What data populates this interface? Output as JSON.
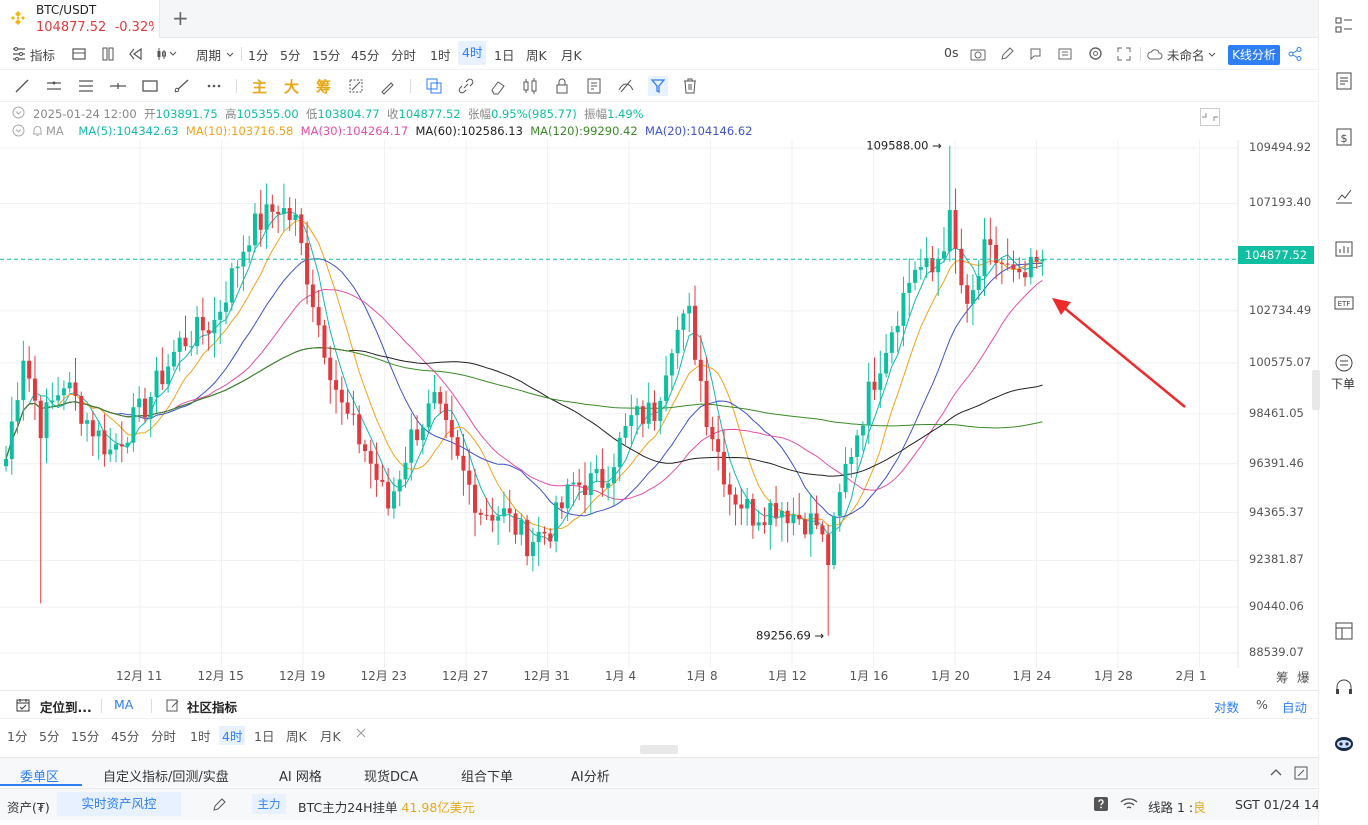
{
  "tab": {
    "symbol": "BTC/USDT",
    "price": "104877.52",
    "change": "-0.32%",
    "add": "+"
  },
  "toolbar": {
    "indicator_label": "指标",
    "period_label": "周期",
    "periods": [
      "1分",
      "5分",
      "15分",
      "45分",
      "分时",
      "1时",
      "4时",
      "1日",
      "周K",
      "月K"
    ],
    "active_period": "4时",
    "time_label": "0s",
    "layout_name": "未命名",
    "kline_ai": "K线分析"
  },
  "drawbar": {
    "main": "主",
    "big": "大",
    "chip": "筹"
  },
  "info": {
    "date": "2025-01-24 12:00",
    "open_label": "开",
    "open": "103891.75",
    "high_label": "高",
    "high": "105355.00",
    "low_label": "低",
    "low": "103804.77",
    "close_label": "收",
    "close": "104877.52",
    "chg_label": "张幅",
    "chg": "0.95%(985.77)",
    "amp_label": "振幅",
    "amp": "1.49%",
    "ma_label": "MA",
    "ma5": "MA(5):104342.63",
    "ma10": "MA(10):103716.58",
    "ma30": "MA(30):104264.17",
    "ma60": "MA(60):102586.13",
    "ma120": "MA(120):99290.42",
    "ma20": "MA(20):104146.62"
  },
  "colors": {
    "up": "#0ec0a1",
    "down": "#e03a3e",
    "ma5": "#14b8b0",
    "ma10": "#f0a31b",
    "ma30": "#e34fa7",
    "ma60": "#222222",
    "ma120": "#3a8a27",
    "ma20": "#3f52c8",
    "accent": "#2d7ef7"
  },
  "chart_data": {
    "type": "candlestick",
    "symbol": "BTC/USDT",
    "interval": "4时",
    "ylim": [
      88539.07,
      110500
    ],
    "y_ticks": [
      "109494.92",
      "107193.40",
      "102734.49",
      "100575.07",
      "98461.05",
      "96391.46",
      "94365.37",
      "92381.87",
      "90440.06",
      "88539.07"
    ],
    "x_ticks": [
      "12月 11",
      "12月 15",
      "12月 19",
      "12月 23",
      "12月 27",
      "12月 31",
      "1月 4",
      "1月 8",
      "1月 12",
      "1月 16",
      "1月 20",
      "1月 24",
      "1月 28",
      "2月 1"
    ],
    "current_price": "104877.52",
    "max_label": "109588.00",
    "min_label": "89256.69",
    "max_price": 109588.0,
    "min_price": 89256.69,
    "anchors": [
      {
        "t": 0,
        "p": 96600
      },
      {
        "t": 3,
        "p": 101000
      },
      {
        "t": 6,
        "p": 98000
      },
      {
        "t": 10,
        "p": 99800
      },
      {
        "t": 14,
        "p": 98200
      },
      {
        "t": 18,
        "p": 96900
      },
      {
        "t": 24,
        "p": 98800
      },
      {
        "t": 30,
        "p": 101400
      },
      {
        "t": 36,
        "p": 102300
      },
      {
        "t": 42,
        "p": 106000
      },
      {
        "t": 47,
        "p": 107100
      },
      {
        "t": 50,
        "p": 106400
      },
      {
        "t": 54,
        "p": 102200
      },
      {
        "t": 58,
        "p": 98700
      },
      {
        "t": 62,
        "p": 97000
      },
      {
        "t": 66,
        "p": 94600
      },
      {
        "t": 70,
        "p": 97500
      },
      {
        "t": 74,
        "p": 98900
      },
      {
        "t": 78,
        "p": 96400
      },
      {
        "t": 82,
        "p": 94500
      },
      {
        "t": 86,
        "p": 94300
      },
      {
        "t": 90,
        "p": 93200
      },
      {
        "t": 94,
        "p": 93700
      },
      {
        "t": 98,
        "p": 95500
      },
      {
        "t": 103,
        "p": 95700
      },
      {
        "t": 108,
        "p": 98200
      },
      {
        "t": 112,
        "p": 98600
      },
      {
        "t": 115,
        "p": 101600
      },
      {
        "t": 118,
        "p": 102500
      },
      {
        "t": 121,
        "p": 98500
      },
      {
        "t": 125,
        "p": 95300
      },
      {
        "t": 129,
        "p": 94300
      },
      {
        "t": 133,
        "p": 94700
      },
      {
        "t": 136,
        "p": 94300
      },
      {
        "t": 140,
        "p": 93900
      },
      {
        "t": 142,
        "p": 92400
      },
      {
        "t": 145,
        "p": 96200
      },
      {
        "t": 149,
        "p": 99300
      },
      {
        "t": 153,
        "p": 102100
      },
      {
        "t": 157,
        "p": 104600
      },
      {
        "t": 160,
        "p": 104300
      },
      {
        "t": 163,
        "p": 106400
      },
      {
        "t": 166,
        "p": 102500
      },
      {
        "t": 169,
        "p": 105100
      },
      {
        "t": 172,
        "p": 104700
      },
      {
        "t": 175,
        "p": 103800
      },
      {
        "t": 179,
        "p": 104877.52
      }
    ],
    "series": [
      {
        "name": "MA(5)",
        "value": 104342.63
      },
      {
        "name": "MA(10)",
        "value": 103716.58
      },
      {
        "name": "MA(30)",
        "value": 104264.17
      },
      {
        "name": "MA(60)",
        "value": 102586.13
      },
      {
        "name": "MA(120)",
        "value": 99290.42
      },
      {
        "name": "MA(20)",
        "value": 104146.62
      }
    ]
  },
  "axis_extra": {
    "chip": "筹",
    "burst": "爆"
  },
  "locbar": {
    "locate": "定位到...",
    "ma": "MA",
    "community": "社区指标",
    "log": "对数",
    "pct": "%",
    "auto": "自动"
  },
  "period_bar": [
    "1分",
    "5分",
    "15分",
    "45分",
    "分时",
    "1时",
    "4时",
    "1日",
    "周K",
    "月K"
  ],
  "order_tabs": [
    "委单区",
    "自定义指标/回测/实盘",
    "AI 网格",
    "现货DCA",
    "组合下单",
    "AI分析"
  ],
  "status": {
    "assets": "资产(₮)",
    "risk": "实时资产风控",
    "main": "主力",
    "main_text": "BTC主力24H挂单",
    "main_value": "41.98亿美元",
    "route": "线路 1 :",
    "route_q": "良",
    "clock": "SGT  01/24 14:05:44"
  },
  "sidebar": {
    "order_label": "下单"
  }
}
